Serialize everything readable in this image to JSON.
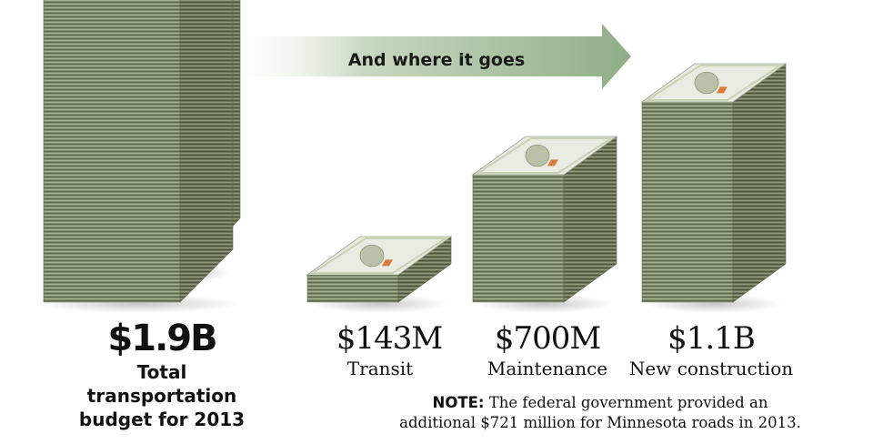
{
  "chart_data": {
    "type": "bar",
    "title": "And where it goes",
    "total": {
      "value_label": "$1.9B",
      "value": 1.9,
      "caption": "Total\ntransportation\nbudget for 2013"
    },
    "categories": [
      "Transit",
      "Maintenance",
      "New construction"
    ],
    "value_labels": [
      "$143M",
      "$700M",
      "$1.1B"
    ],
    "values": [
      0.143,
      0.7,
      1.1
    ],
    "units": "billions of dollars",
    "note": {
      "label": "NOTE:",
      "line1": "The federal government provided an",
      "line2": "additional $721 million for Minnesota roads in 2013."
    }
  },
  "colors": {
    "bill_side": "#7d8a6a",
    "bill_side_dark": "#5d6a4e",
    "bill_top": "#e9ece2",
    "bill_band": "#c8d2b4",
    "bill_orange": "#d9793a",
    "arrow": "#9fb896"
  }
}
